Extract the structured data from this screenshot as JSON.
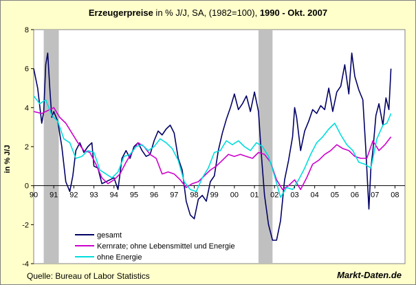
{
  "chart_data": {
    "type": "line",
    "title": {
      "part1": "Erzeugerpreise",
      "part2": " in % J/J, SA, (1982=100), ",
      "part3": "1990 - Okt. 2007"
    },
    "ylabel": "in % J/J",
    "xlim": [
      1990,
      2008.5
    ],
    "ylim": [
      -4,
      8
    ],
    "yticks": [
      -4,
      -2,
      0,
      2,
      4,
      6,
      8
    ],
    "xticks": [
      {
        "value": 1990,
        "label": "90"
      },
      {
        "value": 1991,
        "label": "91"
      },
      {
        "value": 1992,
        "label": "92"
      },
      {
        "value": 1993,
        "label": "93"
      },
      {
        "value": 1994,
        "label": "94"
      },
      {
        "value": 1995,
        "label": "95"
      },
      {
        "value": 1996,
        "label": "96"
      },
      {
        "value": 1997,
        "label": "97"
      },
      {
        "value": 1998,
        "label": "98"
      },
      {
        "value": 1999,
        "label": "99"
      },
      {
        "value": 2000,
        "label": "00"
      },
      {
        "value": 2001,
        "label": "01"
      },
      {
        "value": 2002,
        "label": "02"
      },
      {
        "value": 2003,
        "label": "03"
      },
      {
        "value": 2004,
        "label": "04"
      },
      {
        "value": 2005,
        "label": "05"
      },
      {
        "value": 2006,
        "label": "06"
      },
      {
        "value": 2007,
        "label": "07"
      },
      {
        "value": 2008,
        "label": "08"
      }
    ],
    "recessions": [
      {
        "start": 1990.5,
        "end": 1991.25
      },
      {
        "start": 2001.2,
        "end": 2001.9
      }
    ],
    "legend": {
      "position": "bottom-left"
    },
    "series": [
      {
        "name": "gesamt",
        "color": "#000066",
        "x": [
          1990.0,
          1990.2,
          1990.4,
          1990.5,
          1990.6,
          1990.7,
          1990.8,
          1990.9,
          1991.0,
          1991.2,
          1991.4,
          1991.6,
          1991.8,
          1991.95,
          1992.1,
          1992.3,
          1992.5,
          1992.7,
          1992.9,
          1993.0,
          1993.2,
          1993.4,
          1993.6,
          1993.8,
          1994.0,
          1994.2,
          1994.4,
          1994.6,
          1994.8,
          1995.0,
          1995.2,
          1995.4,
          1995.6,
          1995.8,
          1996.0,
          1996.2,
          1996.4,
          1996.6,
          1996.8,
          1997.0,
          1997.2,
          1997.4,
          1997.6,
          1997.8,
          1998.0,
          1998.2,
          1998.4,
          1998.6,
          1998.8,
          1999.0,
          1999.2,
          1999.4,
          1999.6,
          1999.8,
          2000.0,
          2000.2,
          2000.4,
          2000.6,
          2000.8,
          2001.0,
          2001.2,
          2001.35,
          2001.5,
          2001.7,
          2001.9,
          2002.1,
          2002.3,
          2002.5,
          2002.7,
          2002.9,
          2003.0,
          2003.1,
          2003.3,
          2003.5,
          2003.7,
          2003.9,
          2004.1,
          2004.3,
          2004.5,
          2004.7,
          2004.9,
          2005.1,
          2005.3,
          2005.5,
          2005.7,
          2005.85,
          2006.0,
          2006.2,
          2006.4,
          2006.55,
          2006.7,
          2006.8,
          2006.9,
          2007.05,
          2007.2,
          2007.4,
          2007.55,
          2007.7,
          2007.8
        ],
        "values": [
          6.0,
          5.0,
          3.2,
          3.8,
          6.2,
          6.8,
          5.0,
          3.5,
          3.8,
          3.3,
          2.0,
          0.2,
          -0.3,
          0.5,
          1.8,
          2.2,
          1.7,
          2.0,
          2.2,
          1.0,
          0.9,
          0.1,
          0.2,
          0.3,
          0.4,
          -0.2,
          1.4,
          1.8,
          1.4,
          2.0,
          2.2,
          1.8,
          1.5,
          1.6,
          2.3,
          2.8,
          2.6,
          2.9,
          3.1,
          2.7,
          1.4,
          0.8,
          -0.8,
          -1.5,
          -1.7,
          -0.7,
          -0.5,
          -0.8,
          0.2,
          0.5,
          1.8,
          2.7,
          3.4,
          4.0,
          4.7,
          3.9,
          4.2,
          4.6,
          3.8,
          4.8,
          3.8,
          1.5,
          -0.5,
          -2.0,
          -2.8,
          -2.8,
          -1.8,
          0.3,
          1.3,
          2.5,
          4.0,
          3.5,
          1.8,
          2.8,
          3.3,
          3.9,
          3.7,
          4.1,
          3.9,
          5.0,
          3.8,
          4.8,
          5.1,
          6.2,
          4.7,
          6.8,
          5.6,
          4.9,
          4.4,
          1.8,
          -1.2,
          0.9,
          1.8,
          3.6,
          4.2,
          3.1,
          4.5,
          3.9,
          6.0
        ]
      },
      {
        "name": "Kernrate; ohne Lebensmittel und Energie",
        "color": "#cc00cc",
        "x": [
          1990.0,
          1990.4,
          1990.8,
          1991.0,
          1991.3,
          1991.6,
          1991.9,
          1992.2,
          1992.5,
          1992.8,
          1993.1,
          1993.4,
          1993.7,
          1994.0,
          1994.3,
          1994.6,
          1994.9,
          1995.2,
          1995.5,
          1995.8,
          1996.1,
          1996.4,
          1996.7,
          1997.0,
          1997.3,
          1997.6,
          1997.9,
          1998.2,
          1998.5,
          1998.8,
          1999.1,
          1999.4,
          1999.7,
          2000.0,
          2000.3,
          2000.6,
          2000.9,
          2001.2,
          2001.5,
          2001.8,
          2002.1,
          2002.4,
          2002.7,
          2003.0,
          2003.3,
          2003.6,
          2003.9,
          2004.2,
          2004.5,
          2004.8,
          2005.1,
          2005.4,
          2005.7,
          2006.0,
          2006.3,
          2006.6,
          2006.9,
          2007.2,
          2007.5,
          2007.8
        ],
        "values": [
          3.8,
          3.7,
          3.9,
          4.0,
          3.5,
          3.2,
          2.7,
          2.2,
          1.8,
          1.7,
          1.1,
          0.4,
          0.1,
          0.3,
          0.6,
          1.2,
          1.7,
          2.2,
          2.0,
          1.6,
          1.4,
          0.6,
          0.7,
          0.6,
          0.3,
          -0.1,
          0.1,
          0.2,
          0.5,
          0.8,
          1.0,
          1.3,
          1.6,
          1.5,
          1.6,
          1.5,
          1.4,
          1.7,
          1.6,
          1.2,
          0.3,
          -0.2,
          0.0,
          0.3,
          -0.2,
          0.4,
          1.1,
          1.3,
          1.6,
          1.8,
          2.1,
          1.9,
          1.8,
          1.5,
          1.4,
          1.4,
          2.3,
          1.8,
          2.1,
          2.5
        ]
      },
      {
        "name": "ohne Energie",
        "color": "#00dddd",
        "x": [
          1990.0,
          1990.3,
          1990.6,
          1990.9,
          1991.2,
          1991.5,
          1991.8,
          1992.1,
          1992.4,
          1992.7,
          1993.0,
          1993.3,
          1993.6,
          1993.9,
          1994.2,
          1994.5,
          1994.8,
          1995.1,
          1995.4,
          1995.7,
          1996.0,
          1996.3,
          1996.6,
          1996.9,
          1997.2,
          1997.5,
          1997.8,
          1998.1,
          1998.4,
          1998.7,
          1999.0,
          1999.3,
          1999.6,
          1999.9,
          2000.2,
          2000.5,
          2000.8,
          2001.1,
          2001.4,
          2001.7,
          2002.0,
          2002.3,
          2002.6,
          2002.9,
          2003.2,
          2003.5,
          2003.8,
          2004.1,
          2004.4,
          2004.7,
          2005.0,
          2005.3,
          2005.6,
          2005.9,
          2006.2,
          2006.5,
          2006.8,
          2007.1,
          2007.4,
          2007.6,
          2007.8
        ],
        "values": [
          4.6,
          4.2,
          4.4,
          3.6,
          3.3,
          2.4,
          2.2,
          1.4,
          1.5,
          1.8,
          1.7,
          0.8,
          0.6,
          0.4,
          0.7,
          1.5,
          1.6,
          2.0,
          2.1,
          1.8,
          2.0,
          2.4,
          2.2,
          1.9,
          1.3,
          0.2,
          -0.2,
          -0.3,
          0.4,
          0.9,
          1.7,
          1.8,
          2.3,
          2.1,
          2.3,
          2.0,
          1.8,
          2.2,
          2.0,
          1.5,
          0.5,
          -0.6,
          -0.1,
          -0.2,
          0.3,
          0.9,
          1.6,
          2.2,
          2.5,
          2.9,
          3.2,
          2.6,
          2.1,
          1.8,
          1.2,
          1.1,
          0.9,
          2.4,
          3.1,
          3.2,
          3.7
        ]
      }
    ],
    "source": "Quelle: Bureau of Labor Statistics",
    "brand": "Markt-Daten.de"
  }
}
